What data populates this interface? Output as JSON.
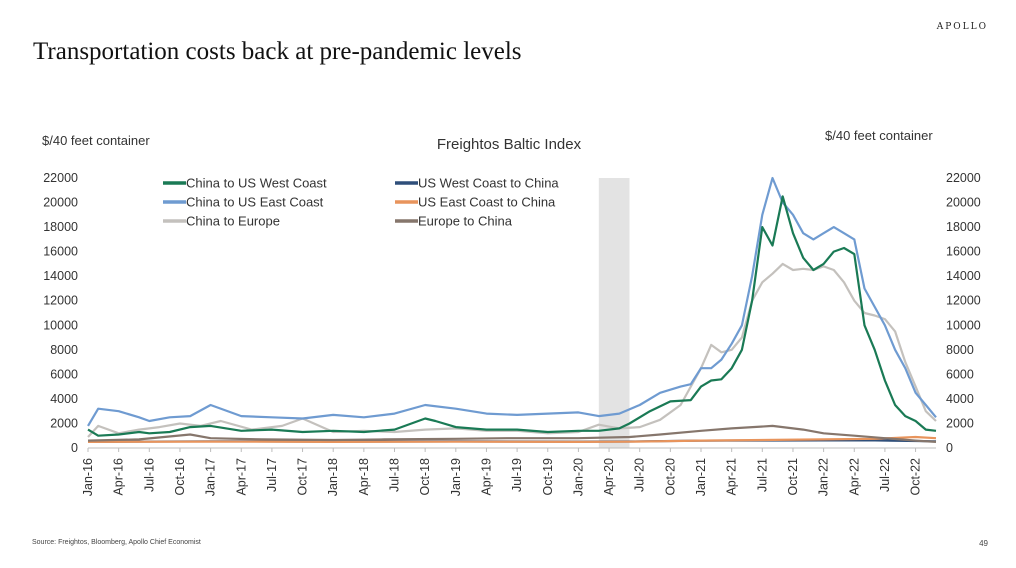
{
  "page": {
    "brand": "APOLLO",
    "title": "Transportation costs back at pre-pandemic levels",
    "source": "Source: Freightos, Bloomberg, Apollo Chief Economist",
    "page_number": "49"
  },
  "chart_data": {
    "type": "line",
    "title": "Freightos Baltic Index",
    "ylabel_left": "$/40 feet container",
    "ylabel_right": "$/40 feet container",
    "ylim": [
      0,
      22000
    ],
    "yticks": [
      0,
      2000,
      4000,
      6000,
      8000,
      10000,
      12000,
      14000,
      16000,
      18000,
      20000,
      22000
    ],
    "xlim": [
      "2016-01",
      "2022-12"
    ],
    "xticks": [
      "Jan-16",
      "Apr-16",
      "Jul-16",
      "Oct-16",
      "Jan-17",
      "Apr-17",
      "Jul-17",
      "Oct-17",
      "Jan-18",
      "Apr-18",
      "Jul-18",
      "Oct-18",
      "Jan-19",
      "Apr-19",
      "Jul-19",
      "Oct-19",
      "Jan-20",
      "Apr-20",
      "Jul-20",
      "Oct-20",
      "Jan-21",
      "Apr-21",
      "Jul-21",
      "Oct-21",
      "Jan-22",
      "Apr-22",
      "Jul-22",
      "Oct-22"
    ],
    "shaded_region": [
      "2020-03",
      "2020-06"
    ],
    "legend_position": "top-left",
    "series": [
      {
        "name": "China to US West Coast",
        "color": "#1a7a55",
        "x": [
          "2016-01",
          "2016-02",
          "2016-04",
          "2016-06",
          "2016-07",
          "2016-09",
          "2016-11",
          "2017-01",
          "2017-04",
          "2017-07",
          "2017-10",
          "2018-01",
          "2018-04",
          "2018-07",
          "2018-10",
          "2018-11",
          "2019-01",
          "2019-04",
          "2019-07",
          "2019-10",
          "2020-01",
          "2020-03",
          "2020-05",
          "2020-06",
          "2020-08",
          "2020-10",
          "2020-12",
          "2021-01",
          "2021-02",
          "2021-03",
          "2021-04",
          "2021-05",
          "2021-06",
          "2021-07",
          "2021-08",
          "2021-09",
          "2021-10",
          "2021-11",
          "2021-12",
          "2022-01",
          "2022-02",
          "2022-03",
          "2022-04",
          "2022-05",
          "2022-06",
          "2022-07",
          "2022-08",
          "2022-09",
          "2022-10",
          "2022-11",
          "2022-12"
        ],
        "values": [
          1500,
          1000,
          1100,
          1300,
          1200,
          1300,
          1700,
          1800,
          1400,
          1500,
          1300,
          1400,
          1300,
          1500,
          2400,
          2200,
          1700,
          1500,
          1500,
          1300,
          1400,
          1400,
          1600,
          2000,
          3000,
          3800,
          3900,
          5000,
          5500,
          5600,
          6500,
          8000,
          12000,
          18000,
          16500,
          20500,
          17500,
          15500,
          14500,
          15000,
          16000,
          16300,
          15800,
          10000,
          8000,
          5500,
          3500,
          2600,
          2200,
          1500,
          1400
        ]
      },
      {
        "name": "US West Coast to China",
        "color": "#2f4f7a",
        "x": [
          "2016-01",
          "2017-01",
          "2018-01",
          "2019-01",
          "2020-01",
          "2020-06",
          "2021-01",
          "2022-01",
          "2022-06",
          "2022-12"
        ],
        "values": [
          500,
          550,
          520,
          540,
          520,
          530,
          600,
          620,
          620,
          550
        ]
      },
      {
        "name": "China to US East Coast",
        "color": "#6f9bd1",
        "x": [
          "2016-01",
          "2016-02",
          "2016-04",
          "2016-06",
          "2016-07",
          "2016-09",
          "2016-11",
          "2017-01",
          "2017-04",
          "2017-07",
          "2017-10",
          "2018-01",
          "2018-04",
          "2018-07",
          "2018-10",
          "2019-01",
          "2019-04",
          "2019-07",
          "2019-10",
          "2020-01",
          "2020-03",
          "2020-05",
          "2020-07",
          "2020-09",
          "2020-11",
          "2020-12",
          "2021-01",
          "2021-02",
          "2021-03",
          "2021-04",
          "2021-05",
          "2021-06",
          "2021-07",
          "2021-08",
          "2021-09",
          "2021-10",
          "2021-11",
          "2021-12",
          "2022-01",
          "2022-02",
          "2022-03",
          "2022-04",
          "2022-05",
          "2022-06",
          "2022-07",
          "2022-08",
          "2022-09",
          "2022-10",
          "2022-11",
          "2022-12"
        ],
        "values": [
          1800,
          3200,
          3000,
          2500,
          2200,
          2500,
          2600,
          3500,
          2600,
          2500,
          2400,
          2700,
          2500,
          2800,
          3500,
          3200,
          2800,
          2700,
          2800,
          2900,
          2600,
          2800,
          3500,
          4500,
          5000,
          5200,
          6500,
          6500,
          7200,
          8500,
          10000,
          14000,
          19000,
          22000,
          20000,
          19000,
          17500,
          17000,
          17500,
          18000,
          17500,
          17000,
          13000,
          11500,
          10000,
          8000,
          6500,
          4500,
          3500,
          2500
        ]
      },
      {
        "name": "US East Coast to China",
        "color": "#e8945c",
        "x": [
          "2016-01",
          "2017-01",
          "2018-01",
          "2019-01",
          "2020-01",
          "2020-06",
          "2021-01",
          "2022-01",
          "2022-06",
          "2022-10",
          "2022-12"
        ],
        "values": [
          500,
          520,
          500,
          510,
          500,
          510,
          600,
          700,
          750,
          900,
          800
        ]
      },
      {
        "name": "China to Europe",
        "color": "#c4c1bd",
        "x": [
          "2016-01",
          "2016-02",
          "2016-04",
          "2016-06",
          "2016-08",
          "2016-10",
          "2016-12",
          "2017-02",
          "2017-05",
          "2017-08",
          "2017-10",
          "2018-01",
          "2018-04",
          "2018-07",
          "2018-10",
          "2019-01",
          "2019-04",
          "2019-07",
          "2019-10",
          "2020-01",
          "2020-03",
          "2020-05",
          "2020-07",
          "2020-09",
          "2020-11",
          "2021-01",
          "2021-02",
          "2021-03",
          "2021-04",
          "2021-05",
          "2021-06",
          "2021-07",
          "2021-08",
          "2021-09",
          "2021-10",
          "2021-11",
          "2021-12",
          "2022-01",
          "2022-02",
          "2022-03",
          "2022-04",
          "2022-05",
          "2022-06",
          "2022-07",
          "2022-08",
          "2022-09",
          "2022-10",
          "2022-11",
          "2022-12"
        ],
        "values": [
          900,
          1800,
          1200,
          1500,
          1700,
          2000,
          1800,
          2200,
          1500,
          1800,
          2400,
          1300,
          1400,
          1300,
          1500,
          1600,
          1400,
          1400,
          1200,
          1300,
          1900,
          1600,
          1700,
          2300,
          3500,
          6500,
          8400,
          7800,
          8000,
          9000,
          12000,
          13500,
          14200,
          15000,
          14500,
          14600,
          14500,
          14800,
          14500,
          13500,
          12000,
          11000,
          10800,
          10500,
          9500,
          7000,
          5000,
          3000,
          2200
        ]
      },
      {
        "name": "Europe to China",
        "color": "#86766c",
        "x": [
          "2016-01",
          "2016-06",
          "2016-11",
          "2017-01",
          "2017-06",
          "2018-01",
          "2018-06",
          "2019-01",
          "2019-06",
          "2020-01",
          "2020-06",
          "2020-09",
          "2021-01",
          "2021-04",
          "2021-08",
          "2021-11",
          "2022-01",
          "2022-04",
          "2022-07",
          "2022-10",
          "2022-12"
        ],
        "values": [
          600,
          700,
          1100,
          800,
          700,
          650,
          700,
          750,
          800,
          800,
          900,
          1100,
          1400,
          1600,
          1800,
          1500,
          1200,
          1000,
          800,
          600,
          500
        ]
      }
    ]
  }
}
